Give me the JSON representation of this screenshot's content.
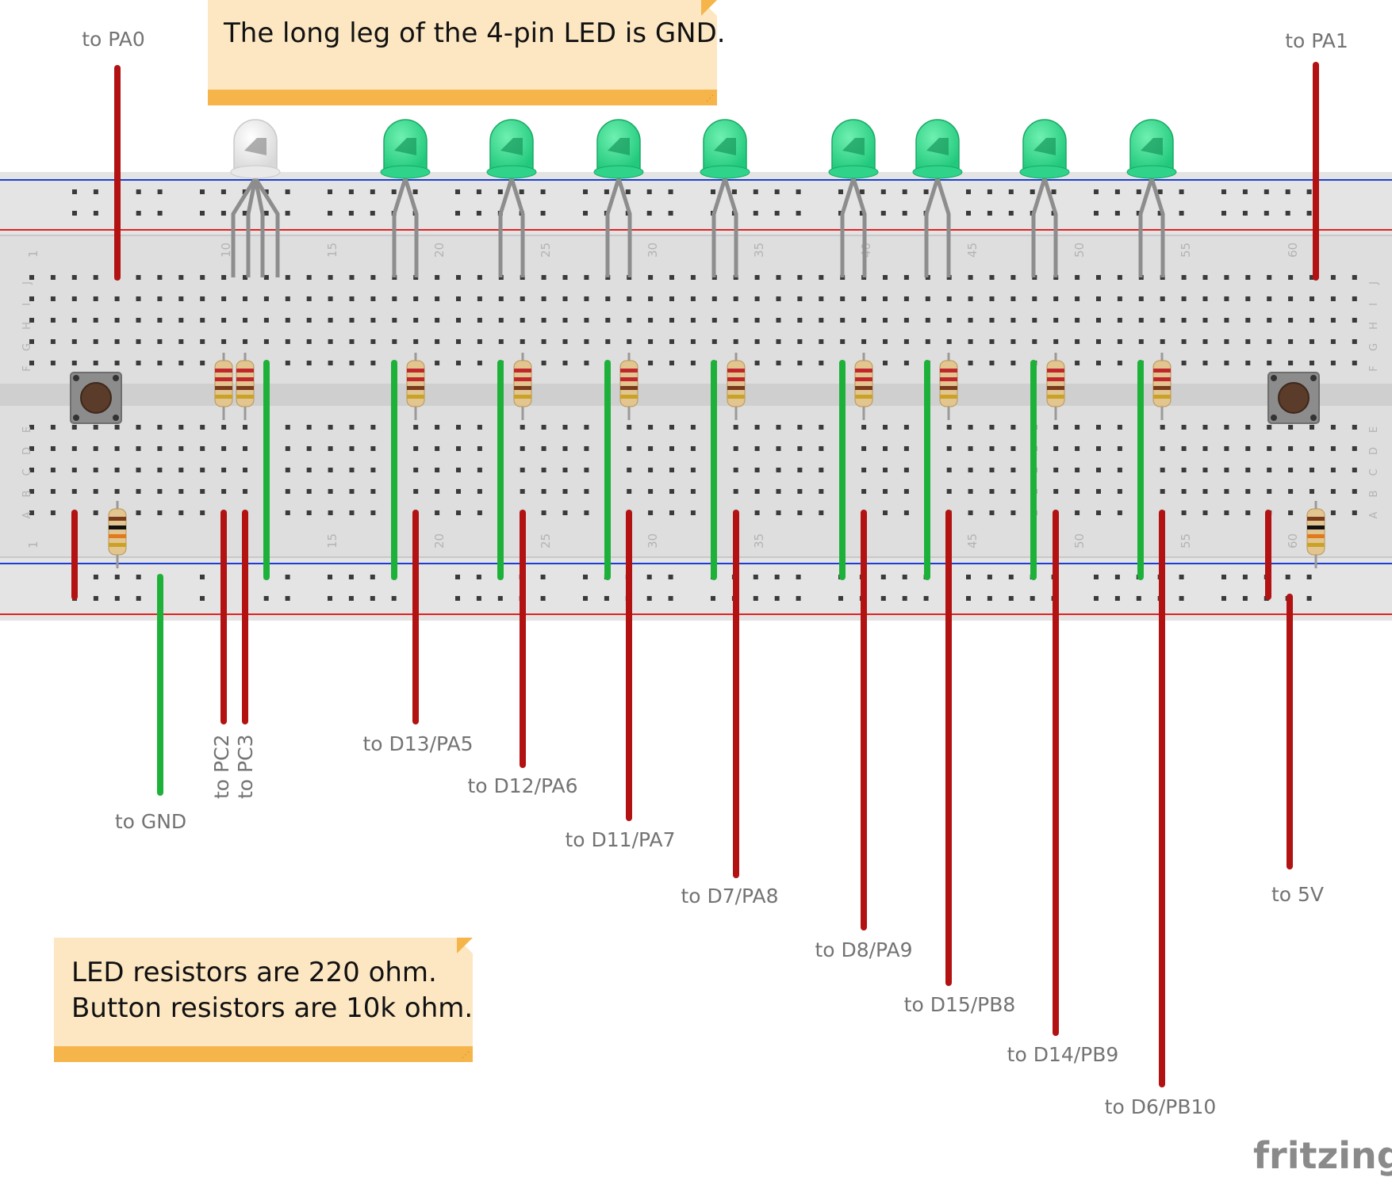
{
  "notes": {
    "top": "The long leg of the 4-pin LED is GND.",
    "bottom_line1": "LED resistors are 220 ohm.",
    "bottom_line2": "Button resistors are 10k ohm."
  },
  "breadboard": {
    "row_letters_top": [
      "J",
      "I",
      "H",
      "G",
      "F"
    ],
    "row_letters_bottom": [
      "E",
      "D",
      "C",
      "B",
      "A"
    ],
    "column_numbers": [
      "1",
      "10",
      "15",
      "20",
      "25",
      "30",
      "35",
      "40",
      "45",
      "50",
      "55",
      "60"
    ]
  },
  "labels": {
    "pa0": "to PA0",
    "pa1": "to PA1",
    "gnd": "to GND",
    "pc2": "to PC2",
    "pc3": "to PC3",
    "d13": "to D13/PA5",
    "d12": "to D12/PA6",
    "d11": "to D11/PA7",
    "d7": "to D7/PA8",
    "d8": "to D8/PA9",
    "d15": "to D15/PB8",
    "d14": "to D14/PB9",
    "d6": "to D6/PB10",
    "v5": "to 5V"
  },
  "brand": "fritzing",
  "colors": {
    "wire_red": "#b21212",
    "wire_green": "#1eb13a",
    "led_green": "#3bdc8e",
    "note_bg": "#fde7c3",
    "note_bar": "#f6b54a"
  }
}
